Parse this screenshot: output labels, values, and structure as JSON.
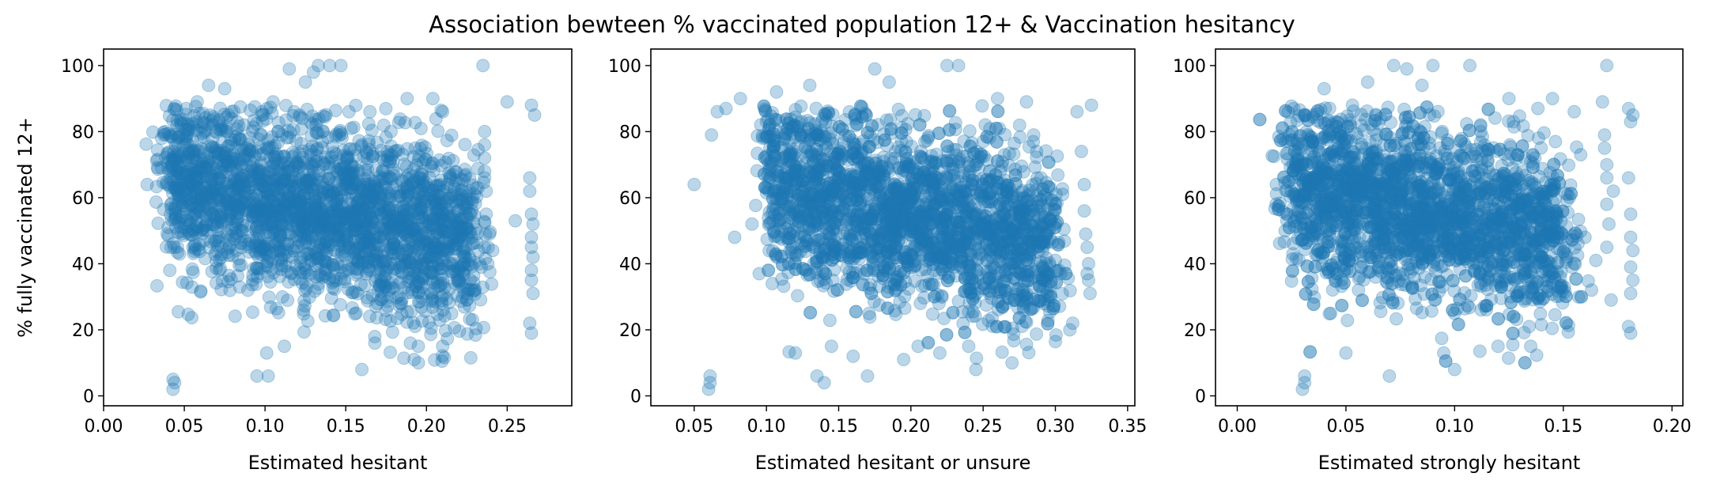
{
  "chart_data": {
    "type": "scatter",
    "title": "Association bewteen % vaccinated population 12+ & Vaccination hesitancy",
    "ylabel": "% fully vaccinated 12+",
    "point_color": "#1f77b4",
    "point_alpha": 0.3,
    "panels": [
      {
        "xlabel": "Estimated hesitant",
        "xlim": [
          0.0,
          0.29
        ],
        "ylim": [
          -3,
          105
        ],
        "xticks": [
          0.0,
          0.05,
          0.1,
          0.15,
          0.2,
          0.25
        ],
        "xtick_labels": [
          "0.00",
          "0.05",
          "0.10",
          "0.15",
          "0.20",
          "0.25"
        ],
        "yticks": [
          0,
          20,
          40,
          60,
          80,
          100
        ],
        "ytick_labels": [
          "0",
          "20",
          "40",
          "60",
          "80",
          "100"
        ],
        "cluster": {
          "x_range": [
            0.04,
            0.23
          ],
          "y_at_x_start": 65,
          "y_at_x_end": 46,
          "spread": 13
        },
        "points": [
          [
            0.027,
            64
          ],
          [
            0.036,
            78
          ],
          [
            0.038,
            80
          ],
          [
            0.04,
            51
          ],
          [
            0.041,
            38
          ],
          [
            0.043,
            2
          ],
          [
            0.043,
            5
          ],
          [
            0.044,
            4
          ],
          [
            0.044,
            87
          ],
          [
            0.058,
            89
          ],
          [
            0.065,
            94
          ],
          [
            0.075,
            93
          ],
          [
            0.087,
            82
          ],
          [
            0.095,
            6
          ],
          [
            0.098,
            85
          ],
          [
            0.101,
            13
          ],
          [
            0.102,
            6
          ],
          [
            0.105,
            89
          ],
          [
            0.112,
            15
          ],
          [
            0.115,
            99
          ],
          [
            0.118,
            86
          ],
          [
            0.125,
            95
          ],
          [
            0.13,
            98
          ],
          [
            0.133,
            100
          ],
          [
            0.14,
            100
          ],
          [
            0.147,
            100
          ],
          [
            0.152,
            86
          ],
          [
            0.16,
            8
          ],
          [
            0.165,
            86
          ],
          [
            0.168,
            16
          ],
          [
            0.178,
            80
          ],
          [
            0.188,
            90
          ],
          [
            0.19,
            16
          ],
          [
            0.193,
            75
          ],
          [
            0.195,
            10
          ],
          [
            0.204,
            90
          ],
          [
            0.21,
            86
          ],
          [
            0.21,
            15
          ],
          [
            0.215,
            60
          ],
          [
            0.225,
            29
          ],
          [
            0.235,
            100
          ],
          [
            0.236,
            80
          ],
          [
            0.236,
            76
          ],
          [
            0.236,
            72
          ],
          [
            0.236,
            68
          ],
          [
            0.236,
            66
          ],
          [
            0.237,
            62
          ],
          [
            0.237,
            55
          ],
          [
            0.236,
            45
          ],
          [
            0.238,
            40
          ],
          [
            0.239,
            49
          ],
          [
            0.241,
            44
          ],
          [
            0.25,
            89
          ],
          [
            0.255,
            53
          ],
          [
            0.265,
            88
          ],
          [
            0.264,
            66
          ],
          [
            0.264,
            62
          ],
          [
            0.265,
            55
          ],
          [
            0.266,
            52
          ],
          [
            0.265,
            48
          ],
          [
            0.265,
            45
          ],
          [
            0.266,
            42
          ],
          [
            0.265,
            38
          ],
          [
            0.265,
            35
          ],
          [
            0.266,
            31
          ],
          [
            0.264,
            22
          ],
          [
            0.265,
            19
          ],
          [
            0.267,
            85
          ]
        ]
      },
      {
        "xlabel": "Estimated hesitant or unsure",
        "xlim": [
          0.02,
          0.355
        ],
        "ylim": [
          -3,
          105
        ],
        "xticks": [
          0.05,
          0.1,
          0.15,
          0.2,
          0.25,
          0.3,
          0.35
        ],
        "xtick_labels": [
          "0.05",
          "0.10",
          "0.15",
          "0.20",
          "0.25",
          "0.30",
          "0.35"
        ],
        "yticks": [
          0,
          20,
          40,
          60,
          80,
          100
        ],
        "ytick_labels": [
          "0",
          "20",
          "40",
          "60",
          "80",
          "100"
        ],
        "cluster": {
          "x_range": [
            0.1,
            0.3
          ],
          "y_at_x_start": 64,
          "y_at_x_end": 44,
          "spread": 13
        },
        "points": [
          [
            0.05,
            64
          ],
          [
            0.06,
            2
          ],
          [
            0.061,
            4
          ],
          [
            0.061,
            6
          ],
          [
            0.062,
            79
          ],
          [
            0.066,
            86
          ],
          [
            0.072,
            87
          ],
          [
            0.078,
            48
          ],
          [
            0.082,
            90
          ],
          [
            0.09,
            52
          ],
          [
            0.095,
            37
          ],
          [
            0.1,
            83
          ],
          [
            0.104,
            34
          ],
          [
            0.107,
            92
          ],
          [
            0.12,
            13
          ],
          [
            0.13,
            94
          ],
          [
            0.135,
            6
          ],
          [
            0.14,
            4
          ],
          [
            0.145,
            15
          ],
          [
            0.16,
            12
          ],
          [
            0.17,
            6
          ],
          [
            0.175,
            99
          ],
          [
            0.185,
            95
          ],
          [
            0.195,
            11
          ],
          [
            0.205,
            15
          ],
          [
            0.22,
            13
          ],
          [
            0.225,
            100
          ],
          [
            0.233,
            100
          ],
          [
            0.24,
            15
          ],
          [
            0.245,
            8
          ],
          [
            0.25,
            77
          ],
          [
            0.26,
            90
          ],
          [
            0.27,
            10
          ],
          [
            0.28,
            89
          ],
          [
            0.285,
            79
          ],
          [
            0.287,
            74
          ],
          [
            0.29,
            66
          ],
          [
            0.29,
            55
          ],
          [
            0.295,
            50
          ],
          [
            0.3,
            52
          ],
          [
            0.3,
            41
          ],
          [
            0.305,
            61
          ],
          [
            0.31,
            20
          ],
          [
            0.312,
            22
          ],
          [
            0.315,
            86
          ],
          [
            0.318,
            74
          ],
          [
            0.32,
            64
          ],
          [
            0.32,
            56
          ],
          [
            0.321,
            49
          ],
          [
            0.322,
            45
          ],
          [
            0.323,
            40
          ],
          [
            0.322,
            37
          ],
          [
            0.323,
            35
          ],
          [
            0.324,
            31
          ],
          [
            0.325,
            88
          ]
        ]
      },
      {
        "xlabel": "Estimated strongly hesitant",
        "xlim": [
          -0.01,
          0.205
        ],
        "ylim": [
          -3,
          105
        ],
        "xticks": [
          0.0,
          0.05,
          0.1,
          0.15,
          0.2
        ],
        "xtick_labels": [
          "0.00",
          "0.05",
          "0.10",
          "0.15",
          "0.20"
        ],
        "yticks": [
          0,
          20,
          40,
          60,
          80,
          100
        ],
        "ytick_labels": [
          "0",
          "20",
          "40",
          "60",
          "80",
          "100"
        ],
        "cluster": {
          "x_range": [
            0.025,
            0.15
          ],
          "y_at_x_start": 63,
          "y_at_x_end": 47,
          "spread": 13
        },
        "points": [
          [
            0.018,
            64
          ],
          [
            0.022,
            50
          ],
          [
            0.024,
            79
          ],
          [
            0.026,
            87
          ],
          [
            0.03,
            2
          ],
          [
            0.031,
            4
          ],
          [
            0.031,
            6
          ],
          [
            0.035,
            85
          ],
          [
            0.04,
            93
          ],
          [
            0.043,
            25
          ],
          [
            0.05,
            13
          ],
          [
            0.053,
            88
          ],
          [
            0.06,
            95
          ],
          [
            0.07,
            6
          ],
          [
            0.072,
            100
          ],
          [
            0.078,
            99
          ],
          [
            0.085,
            94
          ],
          [
            0.09,
            100
          ],
          [
            0.095,
            13
          ],
          [
            0.1,
            8
          ],
          [
            0.107,
            100
          ],
          [
            0.112,
            80
          ],
          [
            0.12,
            15
          ],
          [
            0.125,
            90
          ],
          [
            0.135,
            15
          ],
          [
            0.145,
            90
          ],
          [
            0.155,
            86
          ],
          [
            0.158,
            73
          ],
          [
            0.16,
            48
          ],
          [
            0.163,
            32
          ],
          [
            0.165,
            41
          ],
          [
            0.168,
            89
          ],
          [
            0.169,
            79
          ],
          [
            0.169,
            75
          ],
          [
            0.17,
            100
          ],
          [
            0.17,
            70
          ],
          [
            0.17,
            66
          ],
          [
            0.17,
            58
          ],
          [
            0.171,
            52
          ],
          [
            0.17,
            45
          ],
          [
            0.172,
            29
          ],
          [
            0.173,
            62
          ],
          [
            0.18,
            87
          ],
          [
            0.181,
            83
          ],
          [
            0.18,
            66
          ],
          [
            0.181,
            55
          ],
          [
            0.181,
            48
          ],
          [
            0.182,
            44
          ],
          [
            0.181,
            39
          ],
          [
            0.182,
            35
          ],
          [
            0.181,
            31
          ],
          [
            0.18,
            21
          ],
          [
            0.181,
            19
          ],
          [
            0.182,
            85
          ]
        ]
      }
    ]
  }
}
